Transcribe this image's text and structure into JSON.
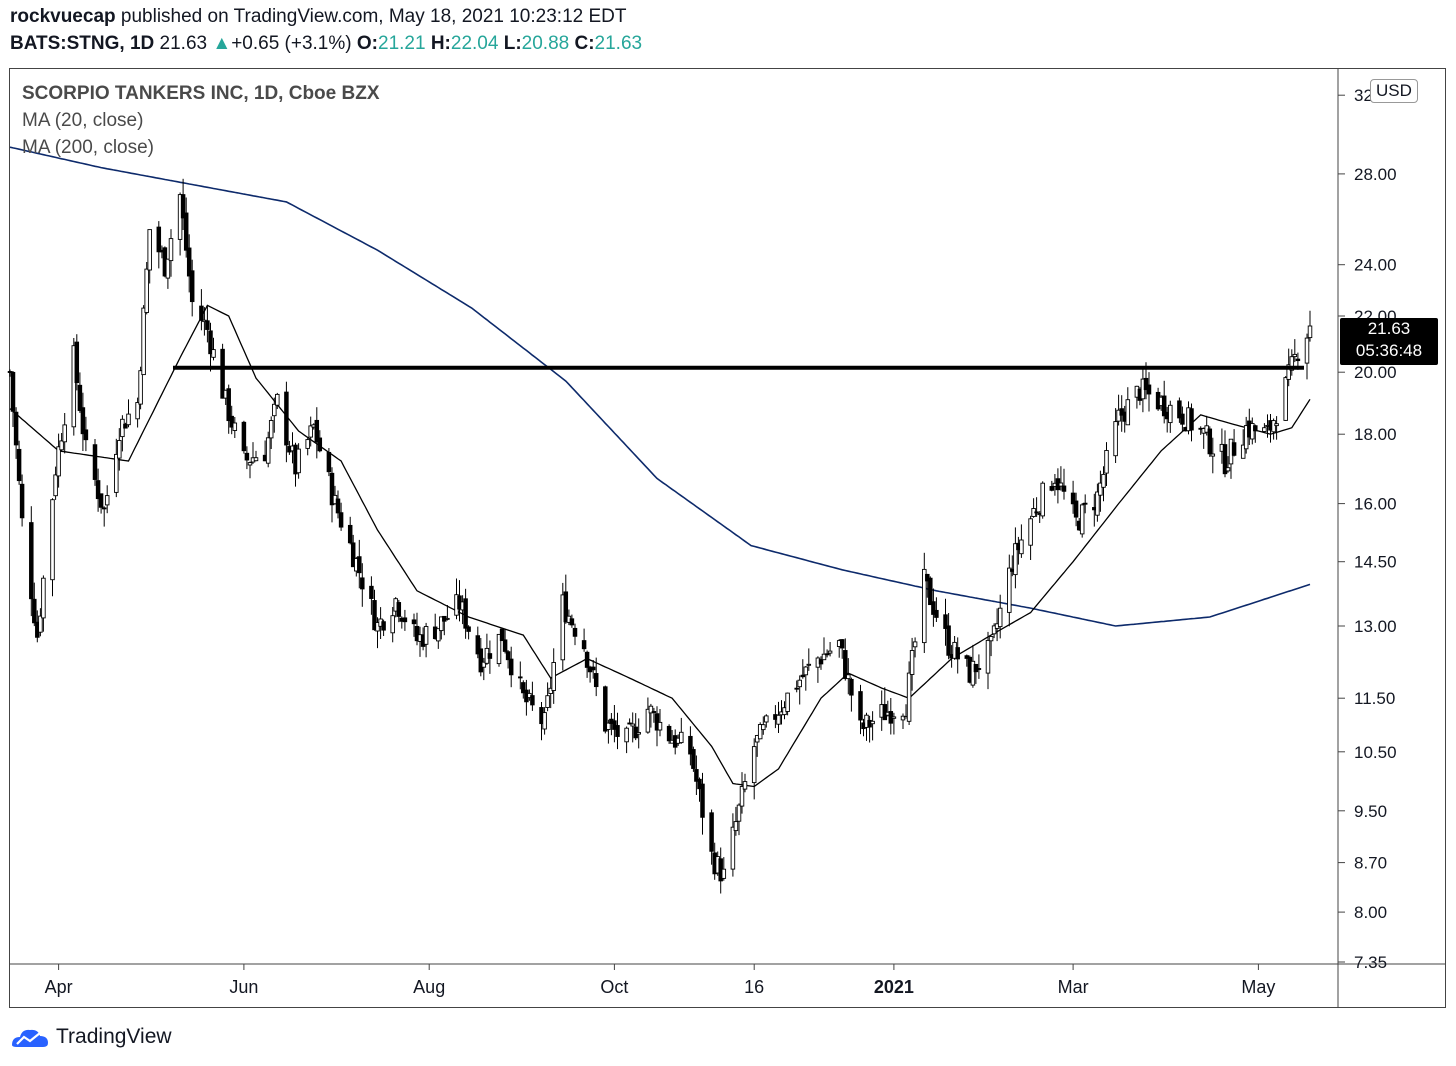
{
  "header": {
    "publisher": "rockvuecap",
    "published_text": " published on TradingView.com, May 18, 2021 10:23:12 EDT",
    "symbol": "BATS:STNG, 1D",
    "last": "21.63",
    "change_arrow": "▲",
    "change": "+0.65 (+3.1%)",
    "o_label": "O:",
    "o_val": "21.21",
    "h_label": "H:",
    "h_val": "22.04",
    "l_label": "L:",
    "l_val": "20.88",
    "c_label": "C:",
    "c_val": "21.63"
  },
  "legend": {
    "title": "SCORPIO TANKERS INC, 1D, Cboe BZX",
    "ma20": "MA (20, close)",
    "ma200": "MA (200, close)"
  },
  "currency": "USD",
  "price_tag": {
    "price": "21.63",
    "countdown": "05:36:48"
  },
  "footer": {
    "brand": "TradingView"
  },
  "colors": {
    "candle": "#000000",
    "ma20": "#000000",
    "ma200": "#0d2a6b",
    "up": "#26a69a"
  },
  "chart_data": {
    "type": "candlestick",
    "scale": "log",
    "ylim": [
      7.35,
      33.4
    ],
    "y_ticks": [
      "32.00",
      "28.00",
      "24.00",
      "22.00",
      "20.00",
      "18.00",
      "16.00",
      "14.50",
      "13.00",
      "11.50",
      "10.50",
      "9.50",
      "8.70",
      "8.00",
      "7.35"
    ],
    "x_ticks": [
      "Apr",
      "Jun",
      "Aug",
      "Oct",
      "16",
      "2021",
      "Mar",
      "May"
    ],
    "x_ticks_bold": [
      "2021"
    ],
    "x_range": [
      "2020-03-16",
      "2021-05-18"
    ],
    "x_tick_dates": [
      "2020-04-01",
      "2020-06-01",
      "2020-08-01",
      "2020-10-01",
      "2020-11-16",
      "2021-01-01",
      "2021-03-01",
      "2021-05-01"
    ],
    "resistance": 20.15,
    "anchors": [
      [
        "2020-03-16",
        20.0
      ],
      [
        "2020-03-20",
        15.5
      ],
      [
        "2020-03-25",
        12.8
      ],
      [
        "2020-03-31",
        17.0
      ],
      [
        "2020-04-06",
        20.5
      ],
      [
        "2020-04-10",
        17.5
      ],
      [
        "2020-04-16",
        15.8
      ],
      [
        "2020-04-21",
        18.2
      ],
      [
        "2020-04-27",
        19.0
      ],
      [
        "2020-05-01",
        25.5
      ],
      [
        "2020-05-06",
        24.0
      ],
      [
        "2020-05-11",
        27.0
      ],
      [
        "2020-05-15",
        22.5
      ],
      [
        "2020-05-20",
        21.5
      ],
      [
        "2020-05-26",
        19.0
      ],
      [
        "2020-06-01",
        17.2
      ],
      [
        "2020-06-08",
        17.5
      ],
      [
        "2020-06-12",
        19.0
      ],
      [
        "2020-06-18",
        17.0
      ],
      [
        "2020-06-24",
        18.2
      ],
      [
        "2020-07-01",
        16.0
      ],
      [
        "2020-07-08",
        14.5
      ],
      [
        "2020-07-15",
        13.0
      ],
      [
        "2020-07-21",
        13.6
      ],
      [
        "2020-07-28",
        12.7
      ],
      [
        "2020-08-04",
        13.0
      ],
      [
        "2020-08-11",
        13.5
      ],
      [
        "2020-08-18",
        12.3
      ],
      [
        "2020-08-25",
        12.8
      ],
      [
        "2020-09-01",
        11.5
      ],
      [
        "2020-09-08",
        11.0
      ],
      [
        "2020-09-14",
        13.5
      ],
      [
        "2020-09-21",
        12.6
      ],
      [
        "2020-09-28",
        11.0
      ],
      [
        "2020-10-05",
        10.7
      ],
      [
        "2020-10-12",
        11.3
      ],
      [
        "2020-10-19",
        10.8
      ],
      [
        "2020-10-26",
        10.5
      ],
      [
        "2020-11-02",
        8.8
      ],
      [
        "2020-11-06",
        8.5
      ],
      [
        "2020-11-10",
        9.3
      ],
      [
        "2020-11-16",
        10.6
      ],
      [
        "2020-11-23",
        11.2
      ],
      [
        "2020-11-30",
        11.8
      ],
      [
        "2020-12-07",
        12.3
      ],
      [
        "2020-12-14",
        12.6
      ],
      [
        "2020-12-21",
        10.9
      ],
      [
        "2020-12-28",
        11.2
      ],
      [
        "2021-01-05",
        11.4
      ],
      [
        "2021-01-11",
        14.0
      ],
      [
        "2021-01-19",
        12.6
      ],
      [
        "2021-01-26",
        12.0
      ],
      [
        "2021-02-02",
        12.5
      ],
      [
        "2021-02-09",
        14.5
      ],
      [
        "2021-02-16",
        15.8
      ],
      [
        "2021-02-23",
        16.8
      ],
      [
        "2021-03-02",
        15.5
      ],
      [
        "2021-03-09",
        16.2
      ],
      [
        "2021-03-16",
        18.5
      ],
      [
        "2021-03-23",
        19.4
      ],
      [
        "2021-03-30",
        19.0
      ],
      [
        "2021-04-06",
        18.6
      ],
      [
        "2021-04-13",
        18.0
      ],
      [
        "2021-04-20",
        17.2
      ],
      [
        "2021-04-27",
        18.2
      ],
      [
        "2021-05-04",
        18.0
      ],
      [
        "2021-05-10",
        19.5
      ],
      [
        "2021-05-14",
        20.8
      ],
      [
        "2021-05-18",
        21.63
      ]
    ],
    "ma20_points": [
      [
        "2020-03-16",
        18.8
      ],
      [
        "2020-04-01",
        17.5
      ],
      [
        "2020-04-24",
        17.2
      ],
      [
        "2020-05-11",
        20.5
      ],
      [
        "2020-05-20",
        22.4
      ],
      [
        "2020-05-27",
        22.0
      ],
      [
        "2020-06-05",
        19.8
      ],
      [
        "2020-06-19",
        18.1
      ],
      [
        "2020-07-03",
        17.2
      ],
      [
        "2020-07-15",
        15.3
      ],
      [
        "2020-07-28",
        13.8
      ],
      [
        "2020-08-14",
        13.2
      ],
      [
        "2020-09-01",
        12.8
      ],
      [
        "2020-09-10",
        11.9
      ],
      [
        "2020-09-22",
        12.3
      ],
      [
        "2020-10-06",
        11.9
      ],
      [
        "2020-10-20",
        11.5
      ],
      [
        "2020-11-02",
        10.6
      ],
      [
        "2020-11-09",
        9.95
      ],
      [
        "2020-11-16",
        9.9
      ],
      [
        "2020-11-24",
        10.2
      ],
      [
        "2020-12-08",
        11.5
      ],
      [
        "2020-12-17",
        12.0
      ],
      [
        "2020-12-28",
        11.7
      ],
      [
        "2021-01-06",
        11.5
      ],
      [
        "2021-01-20",
        12.3
      ],
      [
        "2021-02-02",
        12.8
      ],
      [
        "2021-02-15",
        13.3
      ],
      [
        "2021-03-01",
        14.5
      ],
      [
        "2021-03-16",
        16.0
      ],
      [
        "2021-03-30",
        17.5
      ],
      [
        "2021-04-12",
        18.6
      ],
      [
        "2021-04-23",
        18.3
      ],
      [
        "2021-05-05",
        18.0
      ],
      [
        "2021-05-12",
        18.2
      ],
      [
        "2021-05-18",
        19.1
      ]
    ],
    "ma200_points": [
      [
        "2020-03-16",
        29.3
      ],
      [
        "2020-04-15",
        28.3
      ],
      [
        "2020-05-15",
        27.5
      ],
      [
        "2020-06-15",
        26.7
      ],
      [
        "2020-07-15",
        24.6
      ],
      [
        "2020-08-15",
        22.3
      ],
      [
        "2020-09-15",
        19.7
      ],
      [
        "2020-10-15",
        16.7
      ],
      [
        "2020-11-15",
        14.9
      ],
      [
        "2020-12-15",
        14.3
      ],
      [
        "2021-01-15",
        13.8
      ],
      [
        "2021-02-15",
        13.4
      ],
      [
        "2021-03-15",
        13.0
      ],
      [
        "2021-04-15",
        13.2
      ],
      [
        "2021-05-18",
        13.95
      ]
    ]
  }
}
